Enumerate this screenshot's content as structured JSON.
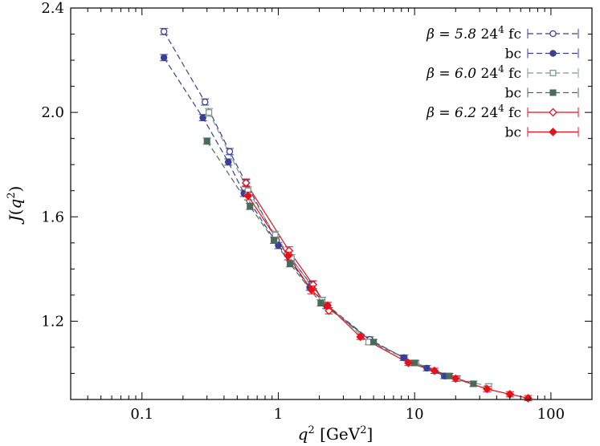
{
  "chart_data": {
    "type": "scatter",
    "title": "",
    "xlabel_var": "q",
    "xlabel_unit": "[GeV",
    "xlabel_close": "]",
    "ylabel_var": "J",
    "ylabel_arg": "q",
    "x_scale": "log",
    "xlim": [
      0.03,
      200
    ],
    "ylim": [
      0.9,
      2.4
    ],
    "x_ticks": [
      0.1,
      1,
      10,
      100
    ],
    "x_tick_labels": [
      "0.1",
      "1",
      "10",
      "100"
    ],
    "y_ticks": [
      1.2,
      1.6,
      2.0,
      2.4
    ],
    "y_tick_labels": [
      "1.2",
      "1.6",
      "2.0",
      "2.4"
    ],
    "legend_position": "top-right",
    "series": [
      {
        "id": "b58fc",
        "beta_label": "β = 5.8",
        "lattice_label": "24",
        "lattice_exp": "4",
        "bc_label": "fc",
        "color": "#3a3f95",
        "marker": "circle-open",
        "line": "dashed",
        "x": [
          0.145,
          0.29,
          0.44,
          0.58,
          0.97,
          1.75,
          2.3,
          4.7,
          8.3,
          16.5
        ],
        "y": [
          2.31,
          2.04,
          1.85,
          1.73,
          1.51,
          1.34,
          1.26,
          1.13,
          1.06,
          0.99
        ],
        "err": [
          0.012,
          0.012,
          0.012,
          0.012,
          0.012,
          0.012,
          0.012,
          0.01,
          0.01,
          0.01
        ]
      },
      {
        "id": "b58bc",
        "beta_label": "",
        "lattice_label": "",
        "lattice_exp": "",
        "bc_label": "bc",
        "color": "#3a3f95",
        "marker": "circle-filled",
        "line": "dashed",
        "x": [
          0.145,
          0.28,
          0.43,
          0.56,
          1.0,
          1.7,
          2.25,
          4.9,
          8.4,
          12.3,
          16.8
        ],
        "y": [
          2.21,
          1.98,
          1.81,
          1.69,
          1.49,
          1.33,
          1.26,
          1.12,
          1.06,
          1.02,
          0.99
        ],
        "err": [
          0.012,
          0.012,
          0.012,
          0.012,
          0.012,
          0.012,
          0.012,
          0.01,
          0.01,
          0.01,
          0.01
        ]
      },
      {
        "id": "b60fc",
        "beta_label": "β = 6.0",
        "lattice_label": "24",
        "lattice_exp": "4",
        "bc_label": "fc",
        "color": "#7f9a8c",
        "marker": "square-open",
        "line": "dashed",
        "x": [
          0.31,
          0.6,
          0.95,
          1.25,
          2.1,
          4.6,
          10.2,
          20.5,
          35.0
        ],
        "y": [
          2.0,
          1.7,
          1.53,
          1.44,
          1.28,
          1.12,
          1.04,
          0.98,
          0.95
        ],
        "err": [
          0.015,
          0.015,
          0.015,
          0.015,
          0.012,
          0.01,
          0.01,
          0.01,
          0.01
        ]
      },
      {
        "id": "b60bc",
        "beta_label": "",
        "lattice_label": "",
        "lattice_exp": "",
        "bc_label": "bc",
        "color": "#4a6b5c",
        "marker": "square-filled",
        "line": "dashed",
        "x": [
          0.3,
          0.62,
          0.93,
          1.22,
          2.05,
          5.0,
          10.0,
          18.0,
          27.0
        ],
        "y": [
          1.89,
          1.64,
          1.51,
          1.42,
          1.27,
          1.12,
          1.04,
          0.99,
          0.96
        ],
        "err": [
          0.012,
          0.012,
          0.012,
          0.012,
          0.012,
          0.01,
          0.01,
          0.01,
          0.01
        ]
      },
      {
        "id": "b62fc",
        "beta_label": "β = 6.2",
        "lattice_label": "24",
        "lattice_exp": "4",
        "bc_label": "fc",
        "color": "#e8101a",
        "marker": "diamond-open",
        "line": "solid",
        "x": [
          0.58,
          1.2,
          1.8,
          2.35
        ],
        "y": [
          1.73,
          1.47,
          1.34,
          1.24
        ],
        "err": [
          0.015,
          0.015,
          0.015,
          0.012
        ]
      },
      {
        "id": "b62bc",
        "beta_label": "",
        "lattice_label": "",
        "lattice_exp": "",
        "bc_label": "bc",
        "color": "#e8101a",
        "marker": "diamond-filled",
        "line": "solid",
        "x": [
          0.6,
          1.18,
          1.75,
          2.3,
          4.0,
          9.0,
          14.0,
          20.0,
          34.0,
          50.0,
          68.0
        ],
        "y": [
          1.68,
          1.45,
          1.32,
          1.26,
          1.14,
          1.04,
          1.01,
          0.98,
          0.94,
          0.92,
          0.905
        ],
        "err": [
          0.015,
          0.015,
          0.015,
          0.012,
          0.01,
          0.01,
          0.01,
          0.01,
          0.01,
          0.01,
          0.01
        ]
      }
    ]
  }
}
